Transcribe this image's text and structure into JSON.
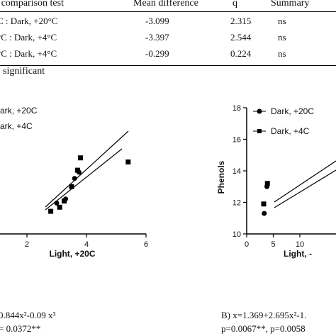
{
  "table": {
    "headers": [
      "e comparison test",
      "Mean difference",
      "q",
      "Summary"
    ],
    "rows": [
      [
        "C : Dark, +20°C",
        "-3.099",
        "2.315",
        "ns"
      ],
      [
        "°C : Dark, +4°C",
        "-3.397",
        "2.544",
        "ns"
      ],
      [
        "°C : Dark, +4°C",
        "-0.299",
        "0.224",
        "ns"
      ]
    ],
    "footnote": "significant"
  },
  "chart_data": [
    {
      "type": "scatter",
      "xlabel": "Light, +20C",
      "ylabel": "",
      "xticks": [
        "2",
        "4",
        "6"
      ],
      "xlim": [
        0,
        6
      ],
      "legend_position": "top-left",
      "series": [
        {
          "name": "ark, +20C",
          "marker": "circle",
          "x": [
            3.0,
            3.3,
            3.6,
            3.75
          ],
          "y": [
            11.5,
            11.7,
            12.7,
            13.0
          ]
        },
        {
          "name": "ark, +4C",
          "marker": "square",
          "x": [
            2.8,
            3.1,
            3.25,
            3.5,
            3.7,
            3.8,
            5.4
          ],
          "y": [
            11.1,
            11.3,
            11.6,
            12.3,
            13.1,
            13.7,
            13.5
          ]
        }
      ]
    },
    {
      "type": "scatter",
      "xlabel": "Light, -",
      "ylabel": "Phenols",
      "yticks": [
        "10",
        "12",
        "14",
        "16",
        "18"
      ],
      "xticks": [
        "0",
        "5",
        "10"
      ],
      "ylim": [
        10,
        18
      ],
      "legend_position": "top-left",
      "series": [
        {
          "name": "Dark, +20C",
          "marker": "circle",
          "x": [
            3.3,
            3.8
          ],
          "y": [
            11.3,
            13.0
          ]
        },
        {
          "name": "Dark, +4C",
          "marker": "square",
          "x": [
            3.2,
            3.9
          ],
          "y": [
            11.9,
            13.2
          ]
        }
      ]
    }
  ],
  "equations": {
    "left_line1": "0.844x²-0.09 x³",
    "left_line2": "= 0.0372**",
    "right_line1": "B) x=1.369+2.695x²-1.",
    "right_line2": "p=0.0067**, p=0.0058"
  }
}
